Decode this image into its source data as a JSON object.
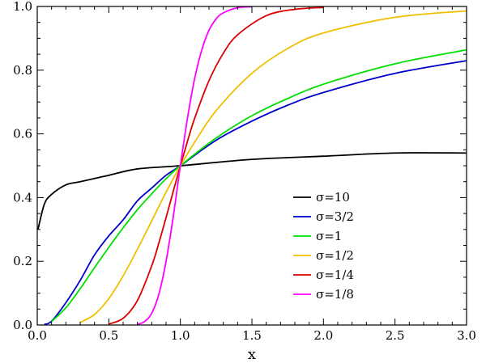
{
  "chart_data": {
    "type": "line",
    "title": "",
    "xlabel": "x",
    "ylabel": "",
    "xlim": [
      0,
      3
    ],
    "ylim": [
      0,
      1
    ],
    "grid": false,
    "legend_position": "center-right",
    "x_ticks": [
      "0.0",
      "0.5",
      "1.0",
      "1.5",
      "2.0",
      "2.5",
      "3.0"
    ],
    "y_ticks": [
      "0.0",
      "0.2",
      "0.4",
      "0.6",
      "0.8",
      "1.0"
    ],
    "series": [
      {
        "name": "σ=10",
        "color": "#000000",
        "x": [
          0.005,
          0.05,
          0.1,
          0.2,
          0.3,
          0.5,
          0.7,
          1.0,
          1.5,
          2.0,
          2.5,
          3.0
        ],
        "y": [
          0.3,
          0.38,
          0.41,
          0.44,
          0.45,
          0.47,
          0.49,
          0.5,
          0.52,
          0.53,
          0.54,
          0.54
        ]
      },
      {
        "name": "σ=3/2",
        "color": "#0000cc",
        "x": [
          0.05,
          0.1,
          0.2,
          0.3,
          0.4,
          0.5,
          0.6,
          0.7,
          0.8,
          0.9,
          1.0,
          1.25,
          1.5,
          1.75,
          2.0,
          2.5,
          3.0
        ],
        "y": [
          0.002,
          0.012,
          0.07,
          0.14,
          0.22,
          0.28,
          0.33,
          0.39,
          0.43,
          0.47,
          0.5,
          0.58,
          0.64,
          0.69,
          0.73,
          0.79,
          0.83
        ]
      },
      {
        "name": "σ=1",
        "color": "#00e000",
        "x": [
          0.1,
          0.2,
          0.3,
          0.4,
          0.5,
          0.6,
          0.7,
          0.8,
          0.9,
          1.0,
          1.25,
          1.5,
          1.75,
          2.0,
          2.5,
          3.0
        ],
        "y": [
          0.011,
          0.054,
          0.114,
          0.18,
          0.244,
          0.305,
          0.362,
          0.412,
          0.459,
          0.5,
          0.587,
          0.657,
          0.711,
          0.756,
          0.82,
          0.864
        ]
      },
      {
        "name": "σ=1/2",
        "color": "#f0c000",
        "x": [
          0.3,
          0.4,
          0.5,
          0.6,
          0.7,
          0.8,
          0.9,
          1.0,
          1.1,
          1.25,
          1.5,
          1.75,
          2.0,
          2.5,
          3.0
        ],
        "y": [
          0.008,
          0.033,
          0.083,
          0.154,
          0.238,
          0.327,
          0.417,
          0.5,
          0.574,
          0.673,
          0.79,
          0.868,
          0.917,
          0.966,
          0.986
        ]
      },
      {
        "name": "σ=1/4",
        "color": "#dd0000",
        "x": [
          0.5,
          0.6,
          0.7,
          0.8,
          0.85,
          0.9,
          0.95,
          1.0,
          1.05,
          1.1,
          1.2,
          1.3,
          1.4,
          1.6,
          1.8,
          2.0
        ],
        "y": [
          0.003,
          0.021,
          0.077,
          0.186,
          0.258,
          0.337,
          0.419,
          0.5,
          0.577,
          0.649,
          0.767,
          0.853,
          0.911,
          0.971,
          0.991,
          0.997
        ]
      },
      {
        "name": "σ=1/8",
        "color": "#ff00ff",
        "x": [
          0.7,
          0.75,
          0.8,
          0.85,
          0.9,
          0.95,
          1.0,
          1.05,
          1.1,
          1.15,
          1.2,
          1.25,
          1.3,
          1.4,
          1.5
        ],
        "y": [
          0.002,
          0.011,
          0.037,
          0.097,
          0.2,
          0.339,
          0.5,
          0.65,
          0.774,
          0.864,
          0.925,
          0.961,
          0.98,
          0.996,
          0.999
        ]
      }
    ]
  }
}
